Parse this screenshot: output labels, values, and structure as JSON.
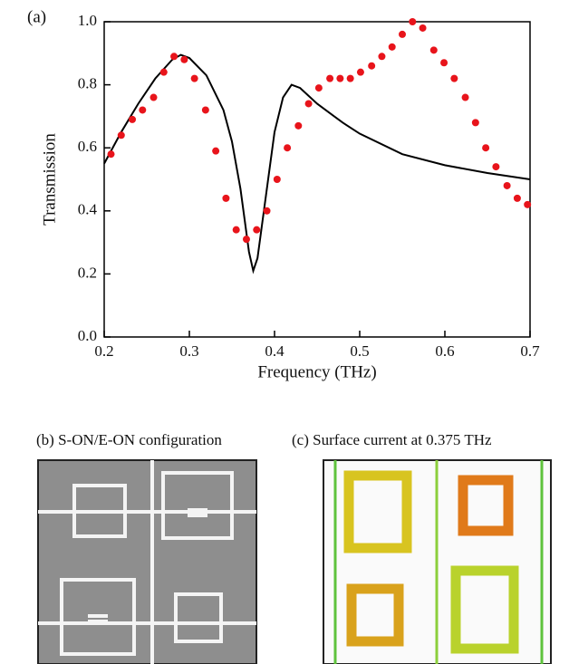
{
  "chart_data": {
    "type": "line",
    "panel_label": "(a)",
    "x_label": "Frequency (THz)",
    "y_label": "Transmission",
    "xlim": [
      0.2,
      0.7
    ],
    "ylim": [
      0,
      1
    ],
    "xticks": [
      0.2,
      0.3,
      0.4,
      0.5,
      0.6,
      0.7
    ],
    "yticks": [
      {
        "value": 0,
        "label": "0.0"
      },
      0.2,
      0.4,
      0.6,
      0.8,
      {
        "value": 1,
        "label": "1.0"
      }
    ],
    "series": [
      {
        "type": "line",
        "color": "#000000",
        "x": [
          0.2,
          0.22,
          0.24,
          0.26,
          0.28,
          0.29,
          0.3,
          0.32,
          0.34,
          0.35,
          0.36,
          0.37,
          0.375,
          0.38,
          0.39,
          0.4,
          0.41,
          0.42,
          0.43,
          0.45,
          0.48,
          0.5,
          0.55,
          0.6,
          0.65,
          0.7
        ],
        "values": [
          0.55,
          0.65,
          0.74,
          0.82,
          0.88,
          0.895,
          0.885,
          0.83,
          0.72,
          0.62,
          0.47,
          0.27,
          0.21,
          0.25,
          0.45,
          0.65,
          0.76,
          0.8,
          0.79,
          0.74,
          0.68,
          0.645,
          0.58,
          0.545,
          0.52,
          0.5
        ]
      },
      {
        "type": "scatter",
        "color": "#e8141b",
        "x": [
          0.208,
          0.22,
          0.233,
          0.245,
          0.258,
          0.27,
          0.282,
          0.294,
          0.306,
          0.319,
          0.331,
          0.343,
          0.355,
          0.367,
          0.379,
          0.391,
          0.403,
          0.415,
          0.428,
          0.44,
          0.452,
          0.465,
          0.477,
          0.489,
          0.501,
          0.514,
          0.526,
          0.538,
          0.55,
          0.562,
          0.574,
          0.587,
          0.599,
          0.611,
          0.624,
          0.636,
          0.648,
          0.66,
          0.673,
          0.685,
          0.697
        ],
        "values": [
          0.58,
          0.64,
          0.69,
          0.72,
          0.76,
          0.84,
          0.89,
          0.88,
          0.82,
          0.72,
          0.59,
          0.44,
          0.34,
          0.31,
          0.34,
          0.4,
          0.5,
          0.6,
          0.67,
          0.74,
          0.79,
          0.82,
          0.82,
          0.82,
          0.84,
          0.86,
          0.89,
          0.92,
          0.96,
          1.0,
          0.98,
          0.91,
          0.87,
          0.82,
          0.76,
          0.68,
          0.6,
          0.54,
          0.48,
          0.44,
          0.42
        ]
      }
    ]
  },
  "panels": [
    {
      "caption": "(b) S-ON/E-ON configuration"
    },
    {
      "caption": "(c) Surface current at 0.375 THz"
    }
  ]
}
